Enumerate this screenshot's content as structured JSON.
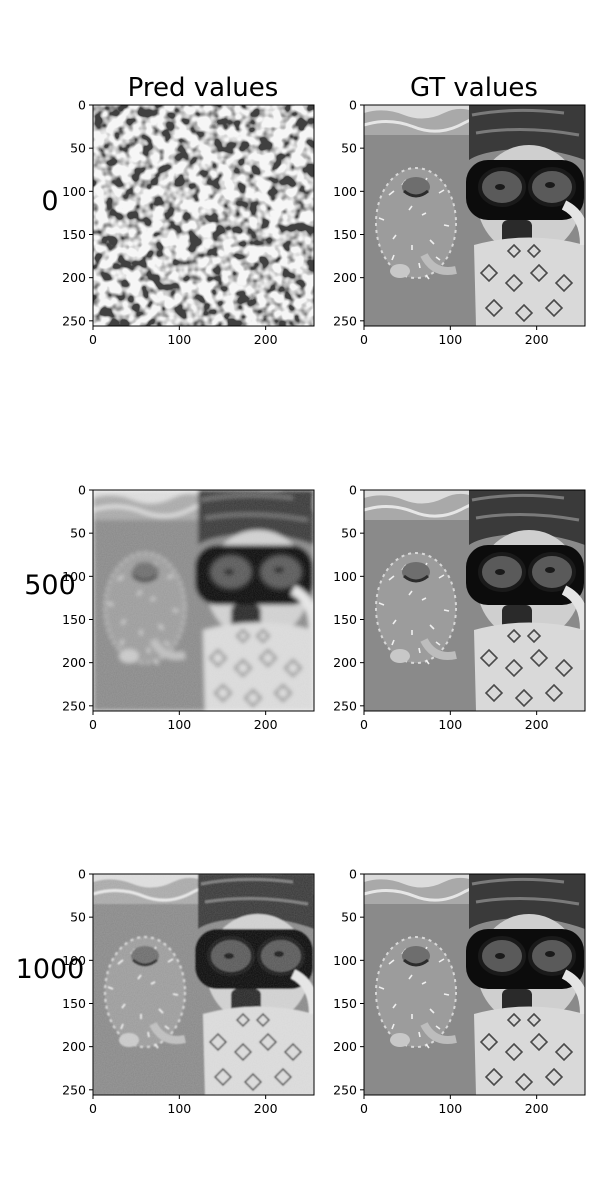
{
  "chart_data": {
    "type": "image-grid",
    "column_titles": [
      "Pred values",
      "GT values"
    ],
    "row_labels": [
      "0",
      "500",
      "1000"
    ],
    "xlim": [
      0,
      256
    ],
    "ylim": [
      256,
      0
    ],
    "xticks": [
      0,
      100,
      200
    ],
    "yticks": [
      0,
      50,
      100,
      150,
      200,
      250
    ],
    "colormap": "gray",
    "panels": [
      {
        "row": "0",
        "column": "Pred values",
        "content": "noise"
      },
      {
        "row": "0",
        "column": "GT values",
        "content": "photo"
      },
      {
        "row": "500",
        "column": "Pred values",
        "content": "photo-blurred"
      },
      {
        "row": "500",
        "column": "GT values",
        "content": "photo"
      },
      {
        "row": "1000",
        "column": "Pred values",
        "content": "photo-slightly-blurred"
      },
      {
        "row": "1000",
        "column": "GT values",
        "content": "photo"
      }
    ]
  }
}
